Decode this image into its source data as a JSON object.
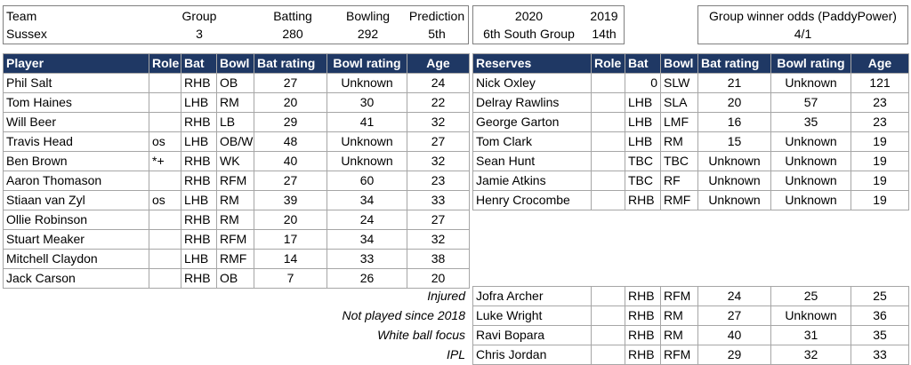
{
  "team_box": {
    "headers": {
      "team": "Team",
      "group": "Group",
      "batting": "Batting",
      "bowling": "Bowling",
      "prediction": "Prediction"
    },
    "values": {
      "team": "Sussex",
      "group": "3",
      "batting": "280",
      "bowling": "292",
      "prediction": "5th"
    }
  },
  "season_box": {
    "headers": {
      "y2020": "2020",
      "y2019": "2019"
    },
    "values": {
      "y2020": "6th South Group",
      "y2019": "14th"
    }
  },
  "odds_box": {
    "label": "Group winner odds (PaddyPower)",
    "value": "4/1"
  },
  "players": {
    "headers": [
      "Player",
      "Role",
      "Bat",
      "Bowl",
      "Bat rating",
      "Bowl rating",
      "Age"
    ],
    "rows": [
      [
        "Phil Salt",
        "",
        "RHB",
        "OB",
        "27",
        "Unknown",
        "24"
      ],
      [
        "Tom Haines",
        "",
        "LHB",
        "RM",
        "20",
        "30",
        "22"
      ],
      [
        "Will Beer",
        "",
        "RHB",
        "LB",
        "29",
        "41",
        "32"
      ],
      [
        "Travis Head",
        "os",
        "LHB",
        "OB/W",
        "48",
        "Unknown",
        "27"
      ],
      [
        "Ben Brown",
        "*+",
        "RHB",
        "WK",
        "40",
        "Unknown",
        "32"
      ],
      [
        "Aaron Thomason",
        "",
        "RHB",
        "RFM",
        "27",
        "60",
        "23"
      ],
      [
        "Stiaan van Zyl",
        "os",
        "LHB",
        "RM",
        "39",
        "34",
        "33"
      ],
      [
        "Ollie Robinson",
        "",
        "RHB",
        "RM",
        "20",
        "24",
        "27"
      ],
      [
        "Stuart Meaker",
        "",
        "RHB",
        "RFM",
        "17",
        "34",
        "32"
      ],
      [
        "Mitchell Claydon",
        "",
        "LHB",
        "RMF",
        "14",
        "33",
        "38"
      ],
      [
        "Jack Carson",
        "",
        "RHB",
        "OB",
        "7",
        "26",
        "20"
      ]
    ]
  },
  "reserves": {
    "headers": [
      "Reserves",
      "Role",
      "Bat",
      "Bowl",
      "Bat rating",
      "Bowl rating",
      "Age"
    ],
    "rows": [
      [
        "Nick Oxley",
        "",
        "0",
        "SLW",
        "21",
        "Unknown",
        "121"
      ],
      [
        "Delray Rawlins",
        "",
        "LHB",
        "SLA",
        "20",
        "57",
        "23"
      ],
      [
        "George Garton",
        "",
        "LHB",
        "LMF",
        "16",
        "35",
        "23"
      ],
      [
        "Tom Clark",
        "",
        "LHB",
        "RM",
        "15",
        "Unknown",
        "19"
      ],
      [
        "Sean Hunt",
        "",
        "TBC",
        "TBC",
        "Unknown",
        "Unknown",
        "19"
      ],
      [
        "Jamie Atkins",
        "",
        "TBC",
        "RF",
        "Unknown",
        "Unknown",
        "19"
      ],
      [
        "Henry Crocombe",
        "",
        "RHB",
        "RMF",
        "Unknown",
        "Unknown",
        "19"
      ]
    ]
  },
  "unavailable": {
    "rows": [
      {
        "reason": "Injured",
        "name": "Jofra Archer",
        "bat": "RHB",
        "bowl": "RFM",
        "bat_rating": "24",
        "bowl_rating": "25",
        "age": "25"
      },
      {
        "reason": "Not played since 2018",
        "name": "Luke Wright",
        "bat": "RHB",
        "bowl": "RM",
        "bat_rating": "27",
        "bowl_rating": "Unknown",
        "age": "36"
      },
      {
        "reason": "White ball focus",
        "name": "Ravi Bopara",
        "bat": "RHB",
        "bowl": "RM",
        "bat_rating": "40",
        "bowl_rating": "31",
        "age": "35"
      },
      {
        "reason": "IPL",
        "name": "Chris Jordan",
        "bat": "RHB",
        "bowl": "RFM",
        "bat_rating": "29",
        "bowl_rating": "32",
        "age": "33"
      }
    ]
  }
}
